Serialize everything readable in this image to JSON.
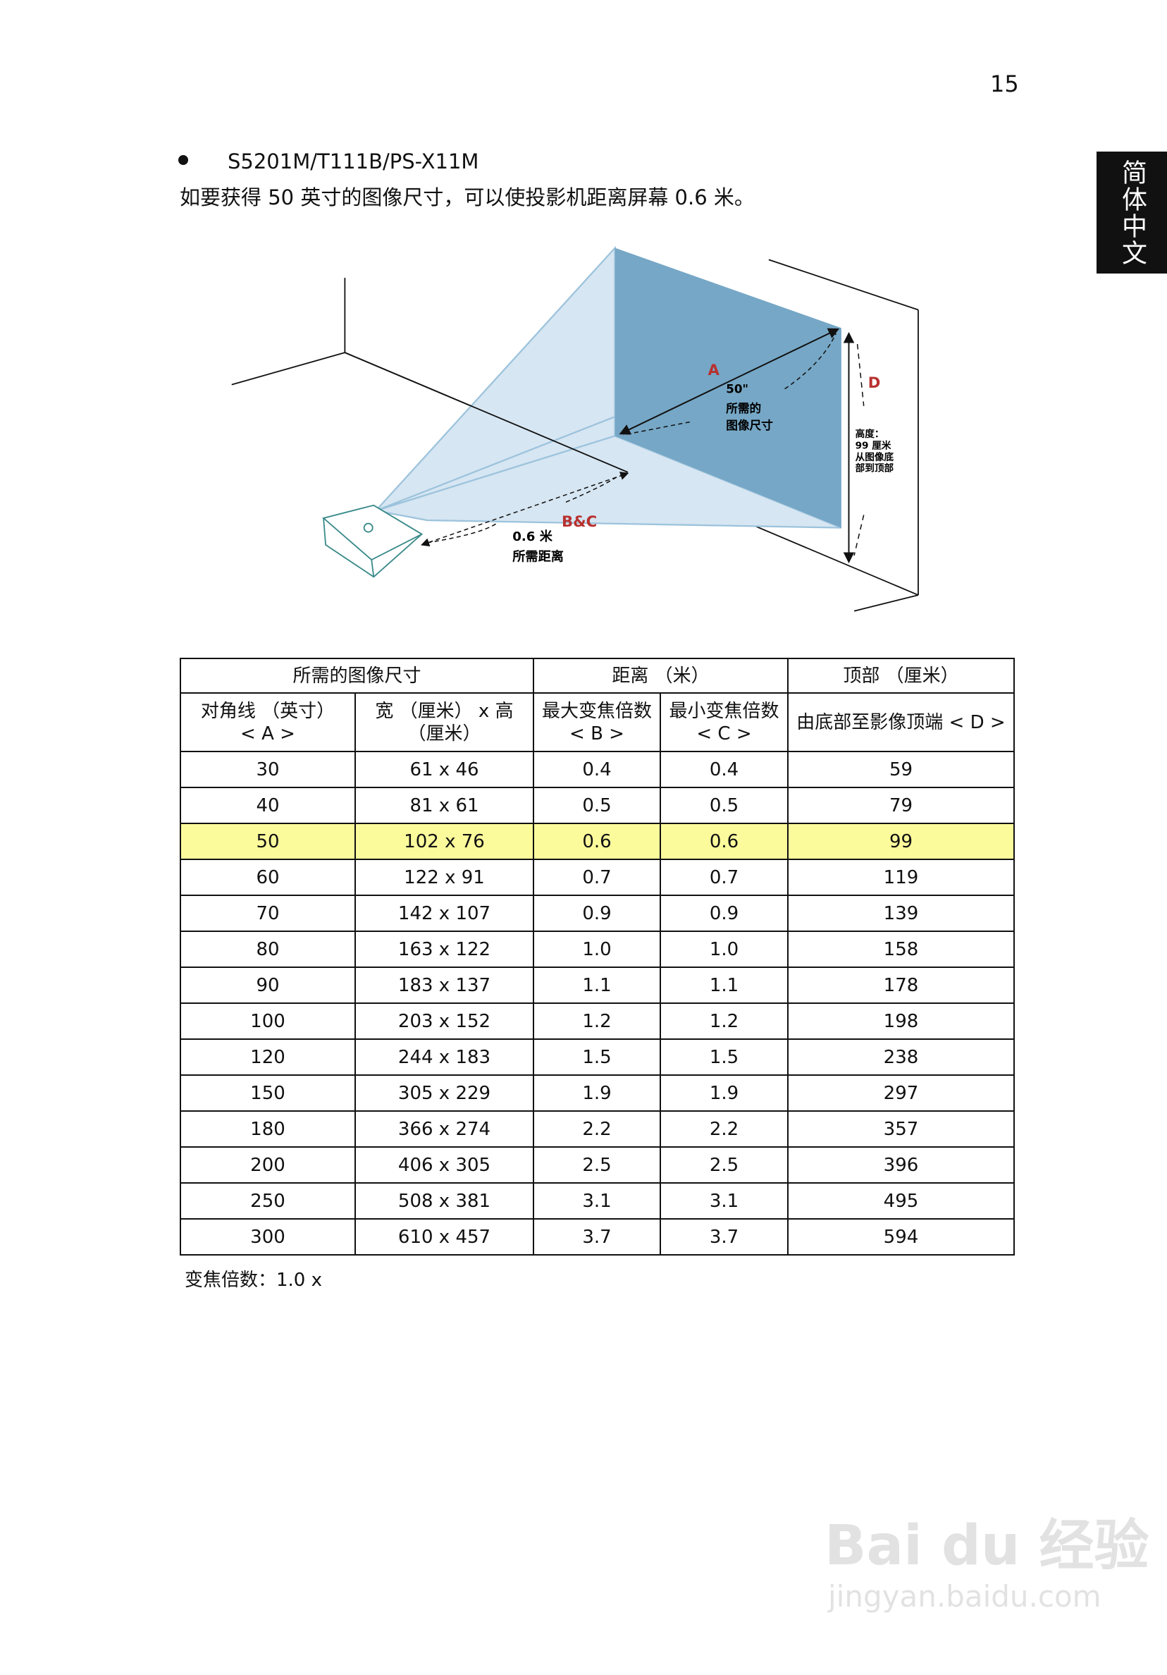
{
  "page_number": "15",
  "side_tab": "简体中文",
  "model": "S5201M/T111B/PS-X11M",
  "intro": "如要获得 50 英寸的图像尺寸，可以使投影机距离屏幕 0.6 米。",
  "diagram": {
    "label_a": "A",
    "diag_size": "50\"",
    "diag_text1": "所需的",
    "diag_text2": "图像尺寸",
    "label_d": "D",
    "height_lines": [
      "高度：",
      "99 厘米",
      "从图像底",
      "部到顶部"
    ],
    "label_bc": "B&C",
    "distance": "0.6 米",
    "distance_text": "所需距离",
    "colors": {
      "screen": "#76a7c6",
      "beam": "#d6e6f2",
      "label": "#b8312f"
    }
  },
  "table": {
    "group_headers": [
      "所需的图像尺寸",
      "距离 （米）",
      "顶部 （厘米）"
    ],
    "sub_headers": [
      [
        "对角线 （英寸）",
        "< A >"
      ],
      [
        "宽 （厘米） x 高",
        "（厘米）"
      ],
      [
        "最大变焦倍数",
        "< B >"
      ],
      [
        "最小变焦倍数",
        "< C >"
      ],
      [
        "由底部至影像顶端 < D >",
        ""
      ]
    ],
    "highlight_color": "#fbfb9c",
    "rows": [
      [
        "30",
        "61 x 46",
        "0.4",
        "0.4",
        "59"
      ],
      [
        "40",
        "81 x 61",
        "0.5",
        "0.5",
        "79"
      ],
      [
        "50",
        "102 x 76",
        "0.6",
        "0.6",
        "99"
      ],
      [
        "60",
        "122 x 91",
        "0.7",
        "0.7",
        "119"
      ],
      [
        "70",
        "142 x 107",
        "0.9",
        "0.9",
        "139"
      ],
      [
        "80",
        "163 x 122",
        "1.0",
        "1.0",
        "158"
      ],
      [
        "90",
        "183 x 137",
        "1.1",
        "1.1",
        "178"
      ],
      [
        "100",
        "203 x 152",
        "1.2",
        "1.2",
        "198"
      ],
      [
        "120",
        "244 x 183",
        "1.5",
        "1.5",
        "238"
      ],
      [
        "150",
        "305 x 229",
        "1.9",
        "1.9",
        "297"
      ],
      [
        "180",
        "366 x 274",
        "2.2",
        "2.2",
        "357"
      ],
      [
        "200",
        "406 x 305",
        "2.5",
        "2.5",
        "396"
      ],
      [
        "250",
        "508 x 381",
        "3.1",
        "3.1",
        "495"
      ],
      [
        "300",
        "610 x 457",
        "3.7",
        "3.7",
        "594"
      ]
    ],
    "highlighted_row": 2
  },
  "zoom_note": "变焦倍数：1.0 x",
  "watermark": "Bai du 经验",
  "watermark_url": "jingyan.baidu.com"
}
